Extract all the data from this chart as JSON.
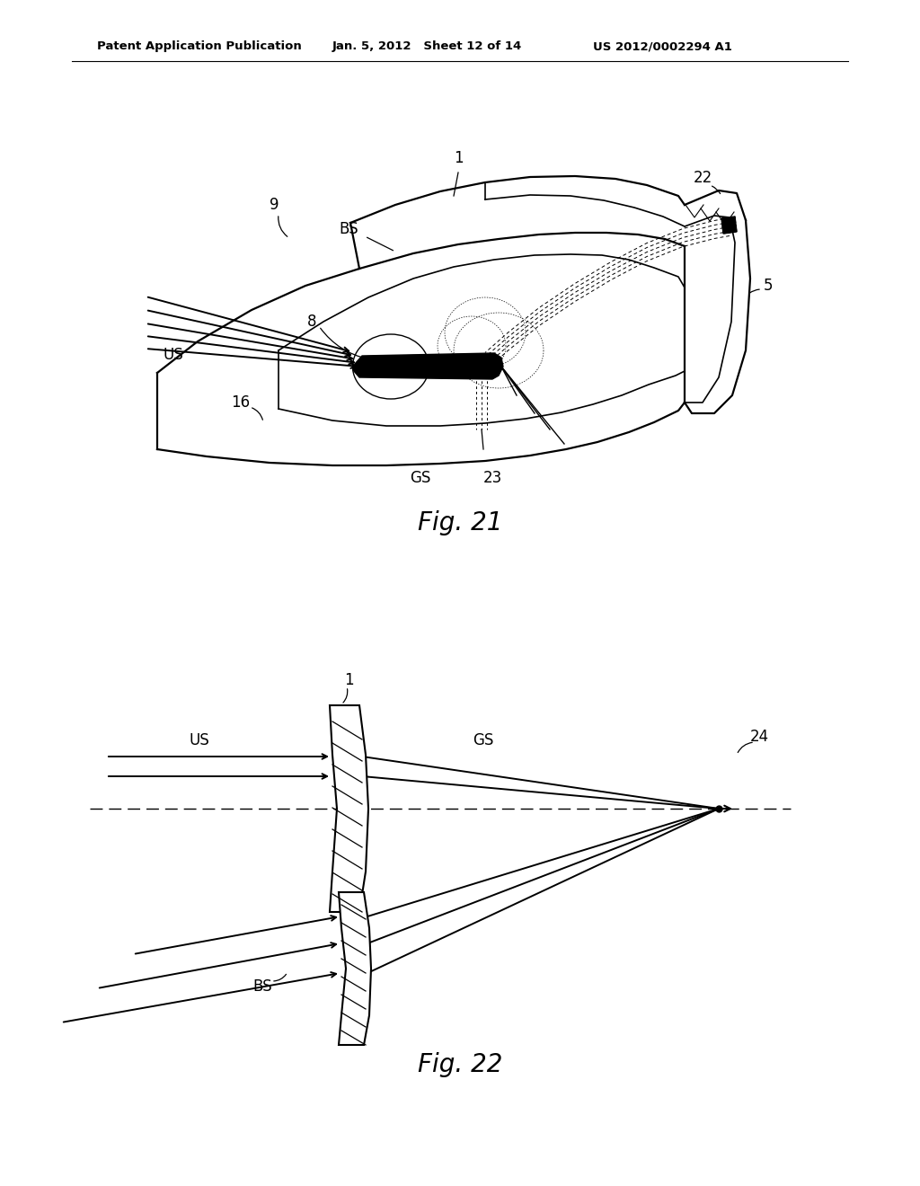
{
  "bg_color": "#ffffff",
  "header_left": "Patent Application Publication",
  "header_mid": "Jan. 5, 2012   Sheet 12 of 14",
  "header_right": "US 2012/0002294 A1",
  "fig21_label": "Fig. 21",
  "fig22_label": "Fig. 22",
  "line_color": "#000000",
  "dashed_color": "#000000"
}
